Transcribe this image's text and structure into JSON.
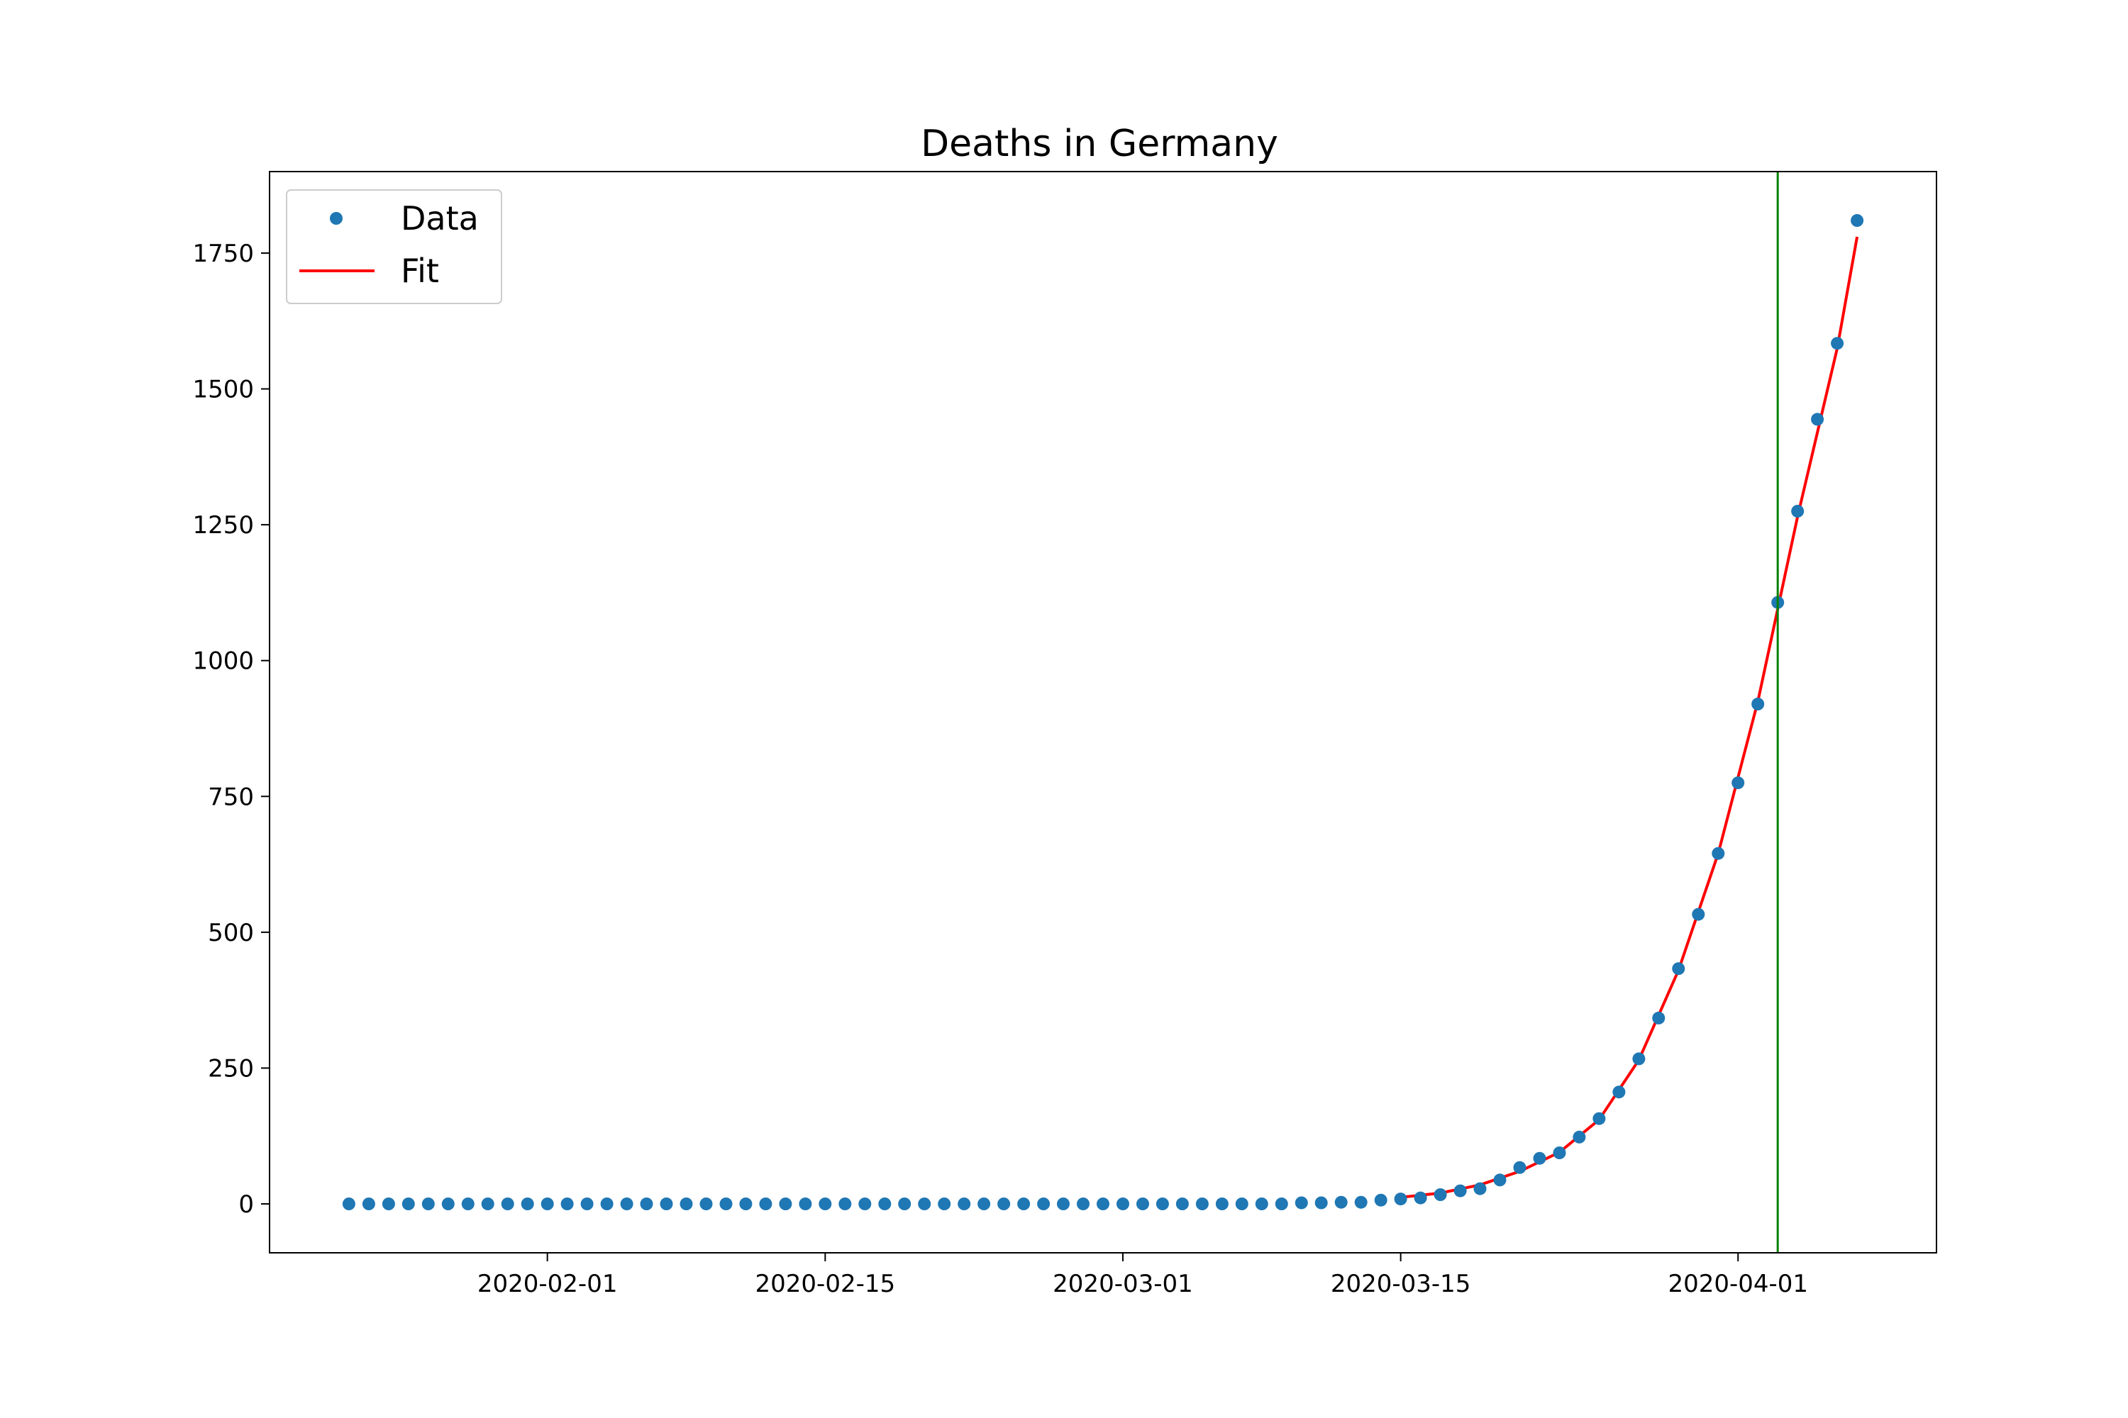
{
  "chart_data": {
    "type": "scatter",
    "title": "Deaths in Germany",
    "xlabel": "",
    "ylabel": "",
    "x_axis": {
      "type": "date",
      "range": [
        "2020-01-18",
        "2020-04-11"
      ],
      "ticks": [
        "2020-02-01",
        "2020-02-15",
        "2020-03-01",
        "2020-03-15",
        "2020-04-01"
      ]
    },
    "y_axis": {
      "range": [
        -90,
        1900
      ],
      "ticks": [
        0,
        250,
        500,
        750,
        1000,
        1250,
        1500,
        1750
      ]
    },
    "grid": false,
    "legend": {
      "position": "top-left",
      "entries": [
        {
          "label": "Data",
          "marker": "circle"
        },
        {
          "label": "Fit",
          "marker": "line"
        }
      ]
    },
    "series": [
      {
        "name": "Data",
        "type": "scatter",
        "color": "#1f77b4",
        "start_date": "2020-01-22",
        "values": [
          0,
          0,
          0,
          0,
          0,
          0,
          0,
          0,
          0,
          0,
          0,
          0,
          0,
          0,
          0,
          0,
          0,
          0,
          0,
          0,
          0,
          0,
          0,
          0,
          0,
          0,
          0,
          0,
          0,
          0,
          0,
          0,
          0,
          0,
          0,
          0,
          0,
          0,
          0,
          0,
          0,
          0,
          0,
          0,
          0,
          0,
          0,
          0,
          2,
          2,
          3,
          3,
          7,
          9,
          11,
          17,
          24,
          28,
          44,
          67,
          84,
          94,
          123,
          157,
          206,
          267,
          342,
          433,
          533,
          645,
          775,
          920,
          1107,
          1275,
          1444,
          1584,
          1810
        ]
      },
      {
        "name": "Fit",
        "type": "line",
        "color": "#ff0000",
        "points": [
          [
            "2020-03-15",
            12
          ],
          [
            "2020-03-17",
            20
          ],
          [
            "2020-03-19",
            35
          ],
          [
            "2020-03-21",
            60
          ],
          [
            "2020-03-23",
            95
          ],
          [
            "2020-03-25",
            155
          ],
          [
            "2020-03-27",
            265
          ],
          [
            "2020-03-29",
            430
          ],
          [
            "2020-03-31",
            645
          ],
          [
            "2020-04-02",
            925
          ],
          [
            "2020-04-04",
            1265
          ],
          [
            "2020-04-06",
            1575
          ],
          [
            "2020-04-07",
            1780
          ]
        ]
      }
    ],
    "reference_line": {
      "orientation": "vertical",
      "x": "2020-04-03",
      "color": "#008000"
    }
  }
}
